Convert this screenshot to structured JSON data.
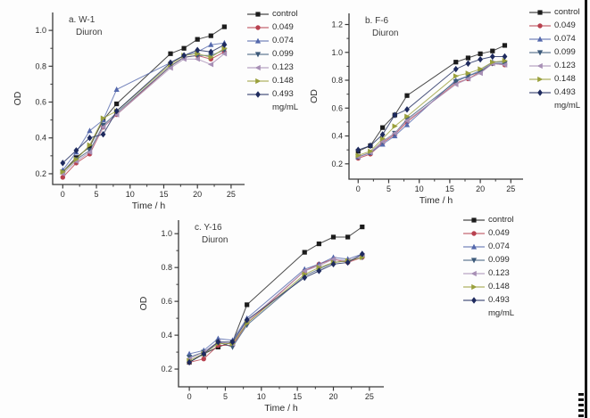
{
  "figure": {
    "background": "#fdfdfd",
    "edge_bar_color": "#141414",
    "axis_color": "#3a3a3a"
  },
  "legend": {
    "entries": [
      "control",
      "0.049",
      "0.074",
      "0.099",
      "0.123",
      "0.148",
      "0.493"
    ],
    "unit_label": "mg/mL",
    "colors": [
      "#1c1c1c",
      "#b8414f",
      "#5468ac",
      "#3d5a7a",
      "#a78fb5",
      "#9aa03c",
      "#1e2a5e"
    ],
    "markers": [
      "square",
      "circle",
      "triangle-up",
      "triangle-down",
      "triangle-left",
      "triangle-right",
      "diamond"
    ]
  },
  "chart_data": [
    {
      "type": "line",
      "panel_label": "a. W-1",
      "treatment_label": "Diuron",
      "xlabel": "Time / h",
      "ylabel": "OD",
      "x": [
        0,
        2,
        4,
        6,
        8,
        16,
        18,
        20,
        22,
        24
      ],
      "xticks": [
        0,
        5,
        10,
        15,
        20,
        25
      ],
      "yticks": [
        0.2,
        0.4,
        0.6,
        0.8,
        1.0
      ],
      "xlim": [
        -1.5,
        27
      ],
      "ylim": [
        0.14,
        1.1
      ],
      "legend_position": "right",
      "grid": false,
      "series": [
        {
          "name": "control",
          "values": [
            0.21,
            0.29,
            0.35,
            0.5,
            0.59,
            0.87,
            0.9,
            0.95,
            0.97,
            1.02
          ]
        },
        {
          "name": "0.049",
          "values": [
            0.18,
            0.26,
            0.31,
            0.46,
            0.53,
            0.8,
            0.85,
            0.86,
            0.84,
            0.88
          ]
        },
        {
          "name": "0.074",
          "values": [
            0.22,
            0.32,
            0.44,
            0.5,
            0.67,
            0.82,
            0.86,
            0.88,
            0.92,
            0.93
          ]
        },
        {
          "name": "0.099",
          "values": [
            0.21,
            0.28,
            0.33,
            0.47,
            0.54,
            0.8,
            0.85,
            0.86,
            0.86,
            0.89
          ]
        },
        {
          "name": "0.123",
          "values": [
            0.2,
            0.27,
            0.32,
            0.46,
            0.53,
            0.79,
            0.84,
            0.84,
            0.81,
            0.87
          ]
        },
        {
          "name": "0.148",
          "values": [
            0.21,
            0.28,
            0.36,
            0.51,
            0.55,
            0.81,
            0.86,
            0.87,
            0.85,
            0.9
          ]
        },
        {
          "name": "0.493",
          "values": [
            0.26,
            0.33,
            0.4,
            0.42,
            0.55,
            0.82,
            0.86,
            0.89,
            0.88,
            0.92
          ]
        }
      ]
    },
    {
      "type": "line",
      "panel_label": "b. F-6",
      "treatment_label": "Diuron",
      "xlabel": "Time / h",
      "ylabel": "OD",
      "x": [
        0,
        2,
        4,
        6,
        8,
        16,
        18,
        20,
        22,
        24
      ],
      "xticks": [
        0,
        5,
        10,
        15,
        20,
        25
      ],
      "yticks": [
        0.2,
        0.4,
        0.6,
        0.8,
        1.0,
        1.2
      ],
      "xlim": [
        -1.5,
        27
      ],
      "ylim": [
        0.09,
        1.28
      ],
      "legend_position": "right",
      "grid": false,
      "series": [
        {
          "name": "control",
          "values": [
            0.29,
            0.33,
            0.46,
            0.55,
            0.69,
            0.93,
            0.96,
            0.99,
            1.01,
            1.05
          ]
        },
        {
          "name": "0.049",
          "values": [
            0.24,
            0.27,
            0.35,
            0.41,
            0.5,
            0.78,
            0.81,
            0.86,
            0.92,
            0.91
          ]
        },
        {
          "name": "0.074",
          "values": [
            0.25,
            0.28,
            0.34,
            0.4,
            0.48,
            0.8,
            0.83,
            0.87,
            0.93,
            0.93
          ]
        },
        {
          "name": "0.099",
          "values": [
            0.25,
            0.28,
            0.36,
            0.42,
            0.52,
            0.79,
            0.83,
            0.86,
            0.92,
            0.92
          ]
        },
        {
          "name": "0.123",
          "values": [
            0.25,
            0.28,
            0.36,
            0.42,
            0.51,
            0.77,
            0.81,
            0.85,
            0.92,
            0.91
          ]
        },
        {
          "name": "0.148",
          "values": [
            0.26,
            0.29,
            0.38,
            0.47,
            0.54,
            0.83,
            0.85,
            0.88,
            0.93,
            0.94
          ]
        },
        {
          "name": "0.493",
          "values": [
            0.3,
            0.33,
            0.41,
            0.55,
            0.59,
            0.88,
            0.92,
            0.95,
            0.97,
            0.97
          ]
        }
      ]
    },
    {
      "type": "line",
      "panel_label": "c. Y-16",
      "treatment_label": "Diuron",
      "xlabel": "Time / h",
      "ylabel": "OD",
      "x": [
        0,
        2,
        4,
        6,
        8,
        16,
        18,
        20,
        22,
        24
      ],
      "xticks": [
        0,
        5,
        10,
        15,
        20,
        25
      ],
      "yticks": [
        0.2,
        0.4,
        0.6,
        0.8,
        1.0
      ],
      "xlim": [
        -1.5,
        27
      ],
      "ylim": [
        0.095,
        1.08
      ],
      "legend_position": "right",
      "grid": false,
      "series": [
        {
          "name": "control",
          "values": [
            0.24,
            0.29,
            0.33,
            0.36,
            0.58,
            0.89,
            0.94,
            0.98,
            0.98,
            1.04
          ]
        },
        {
          "name": "0.049",
          "values": [
            0.24,
            0.26,
            0.34,
            0.34,
            0.47,
            0.78,
            0.82,
            0.85,
            0.83,
            0.86
          ]
        },
        {
          "name": "0.074",
          "values": [
            0.29,
            0.31,
            0.38,
            0.37,
            0.5,
            0.79,
            0.82,
            0.86,
            0.85,
            0.88
          ]
        },
        {
          "name": "0.099",
          "values": [
            0.27,
            0.3,
            0.36,
            0.33,
            0.46,
            0.75,
            0.79,
            0.83,
            0.84,
            0.86
          ]
        },
        {
          "name": "0.123",
          "values": [
            0.26,
            0.3,
            0.36,
            0.35,
            0.48,
            0.78,
            0.81,
            0.85,
            0.84,
            0.87
          ]
        },
        {
          "name": "0.148",
          "values": [
            0.25,
            0.29,
            0.35,
            0.35,
            0.47,
            0.76,
            0.8,
            0.83,
            0.84,
            0.86
          ]
        },
        {
          "name": "0.493",
          "values": [
            0.24,
            0.29,
            0.36,
            0.36,
            0.49,
            0.74,
            0.78,
            0.82,
            0.83,
            0.88
          ]
        }
      ]
    }
  ]
}
